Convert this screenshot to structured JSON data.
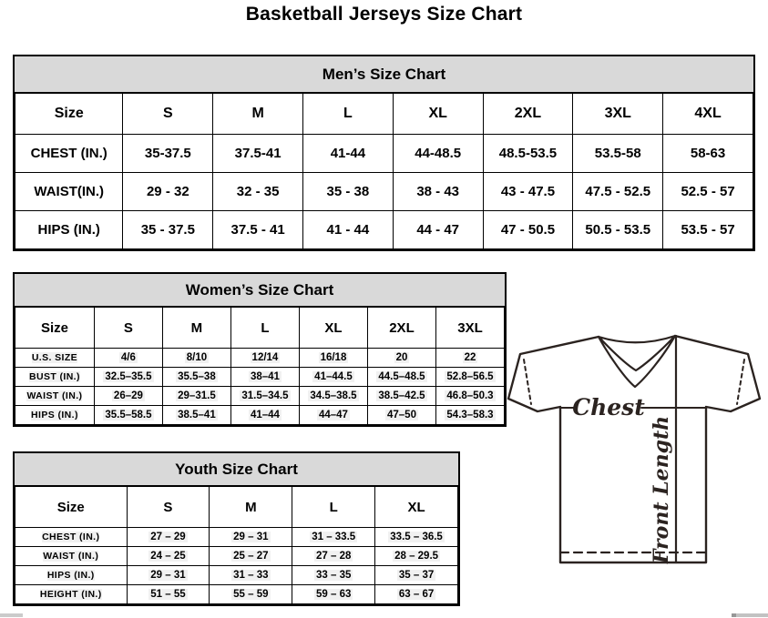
{
  "page_title": "Basketball Jerseys Size Chart",
  "tables": {
    "men": {
      "title": "Men’s Size Chart",
      "header": [
        "Size",
        "S",
        "M",
        "L",
        "XL",
        "2XL",
        "3XL",
        "4XL"
      ],
      "rows": [
        {
          "label": "CHEST (IN.)",
          "values": [
            "35-37.5",
            "37.5-41",
            "41-44",
            "44-48.5",
            "48.5-53.5",
            "53.5-58",
            "58-63"
          ]
        },
        {
          "label": "WAIST(IN.)",
          "values": [
            "29 - 32",
            "32 - 35",
            "35 - 38",
            "38 - 43",
            "43 - 47.5",
            "47.5 - 52.5",
            "52.5 - 57"
          ]
        },
        {
          "label": "HIPS (IN.)",
          "values": [
            "35 - 37.5",
            "37.5 - 41",
            "41 - 44",
            "44 - 47",
            "47 - 50.5",
            "50.5 - 53.5",
            "53.5 - 57"
          ]
        }
      ]
    },
    "women": {
      "title": "Women’s Size Chart",
      "header": [
        "Size",
        "S",
        "M",
        "L",
        "XL",
        "2XL",
        "3XL"
      ],
      "rows": [
        {
          "label": "U.S. SIZE",
          "values": [
            "4/6",
            "8/10",
            "12/14",
            "16/18",
            "20",
            "22"
          ]
        },
        {
          "label": "BUST (IN.)",
          "values": [
            "32.5–35.5",
            "35.5–38",
            "38–41",
            "41–44.5",
            "44.5–48.5",
            "52.8–56.5"
          ]
        },
        {
          "label": "WAIST (IN.)",
          "values": [
            "26–29",
            "29–31.5",
            "31.5–34.5",
            "34.5–38.5",
            "38.5–42.5",
            "46.8–50.3"
          ]
        },
        {
          "label": "HIPS (IN.)",
          "values": [
            "35.5–58.5",
            "38.5–41",
            "41–44",
            "44–47",
            "47–50",
            "54.3–58.3"
          ]
        }
      ]
    },
    "youth": {
      "title": "Youth Size Chart",
      "header": [
        "Size",
        "S",
        "M",
        "L",
        "XL"
      ],
      "rows": [
        {
          "label": "CHEST (IN.)",
          "values": [
            "27 – 29",
            "29 – 31",
            "31 – 33.5",
            "33.5 – 36.5"
          ]
        },
        {
          "label": "WAIST (IN.)",
          "values": [
            "24 – 25",
            "25 – 27",
            "27 – 28",
            "28 – 29.5"
          ]
        },
        {
          "label": "HIPS (IN.)",
          "values": [
            "29 – 31",
            "31 – 33",
            "33 – 35",
            "35 – 37"
          ]
        },
        {
          "label": "HEIGHT (IN.)",
          "values": [
            "51 – 55",
            "55 – 59",
            "59 – 63",
            "63 – 67"
          ]
        }
      ]
    }
  },
  "diagram": {
    "chest_label": "Chest",
    "front_length_label": "Front Length"
  },
  "colors": {
    "band_gray": "#d9d9d9",
    "table_border": "#000000",
    "jersey_line": "#2b2320",
    "cell_highlight": "#f1f1f1"
  }
}
